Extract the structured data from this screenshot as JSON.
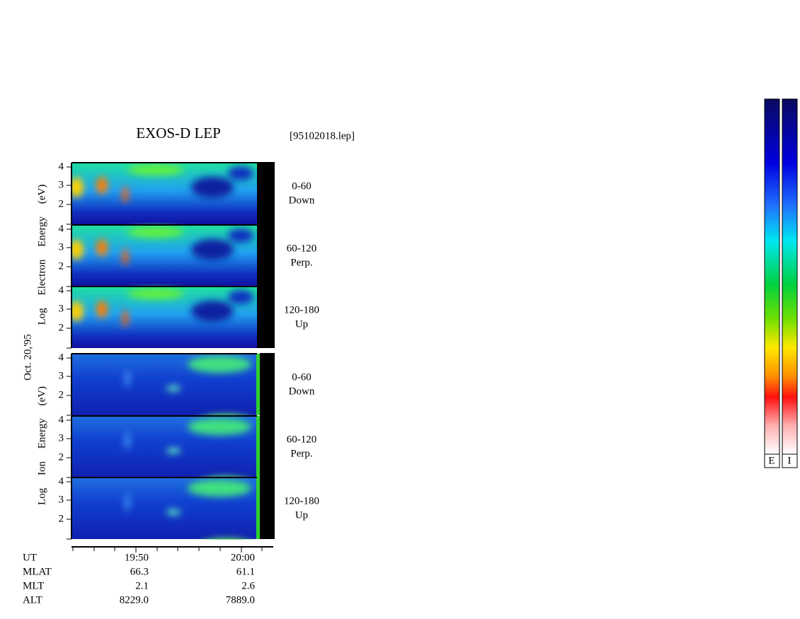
{
  "header": {
    "title": "EXOS-D LEP",
    "file": "[95102018.lep]"
  },
  "date": "Oct. 20,'95",
  "electron": {
    "axis_label": "Log Electron Energy (eV)",
    "panels": [
      {
        "angle": "0-60",
        "direction": "Down",
        "yticks": [
          "4",
          "3",
          "2"
        ]
      },
      {
        "angle": "60-120",
        "direction": "Perp.",
        "yticks": [
          "4",
          "3",
          "2"
        ]
      },
      {
        "angle": "120-180",
        "direction": "Up",
        "yticks": [
          "4",
          "3",
          "2"
        ]
      }
    ]
  },
  "ion": {
    "axis_label": "Log Ion Energy (eV)",
    "panels": [
      {
        "angle": "0-60",
        "direction": "Down",
        "yticks": [
          "4",
          "3",
          "2"
        ]
      },
      {
        "angle": "60-120",
        "direction": "Perp.",
        "yticks": [
          "4",
          "3",
          "2"
        ]
      },
      {
        "angle": "120-180",
        "direction": "Up",
        "yticks": [
          "4",
          "3",
          "2"
        ]
      }
    ]
  },
  "ephemeris": {
    "rows": [
      [
        "UT",
        "19:50",
        "20:00"
      ],
      [
        "MLAT",
        "66.3",
        "61.1"
      ],
      [
        "MLT",
        "2.1",
        "2.6"
      ],
      [
        "ALT",
        "8229.0",
        "7889.0"
      ]
    ]
  },
  "colorbar": {
    "labels": [
      "E",
      "I"
    ]
  }
}
